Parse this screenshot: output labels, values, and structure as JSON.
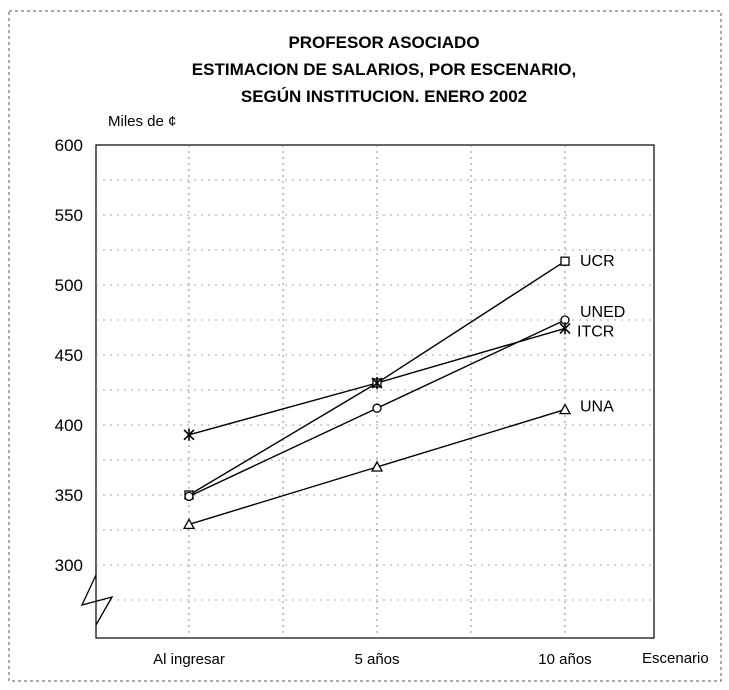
{
  "chart_data": {
    "type": "line",
    "title": [
      "PROFESOR ASOCIADO",
      "ESTIMACION DE SALARIOS, POR ESCENARIO,",
      "SEGÚN INSTITUCION. ENERO 2002"
    ],
    "ylabel": "Miles de ¢",
    "xlabel": "Escenario",
    "categories": [
      "Al ingresar",
      "5 años",
      "10 años"
    ],
    "ylim": [
      250,
      600
    ],
    "yticks": [
      300,
      350,
      400,
      450,
      500,
      550,
      600
    ],
    "grid": "dotted",
    "series": [
      {
        "name": "UCR",
        "marker": "square",
        "values": [
          350,
          430,
          517
        ]
      },
      {
        "name": "UNED",
        "marker": "circle",
        "values": [
          349,
          412,
          475
        ]
      },
      {
        "name": "ITCR",
        "marker": "star",
        "values": [
          393,
          430,
          469
        ]
      },
      {
        "name": "UNA",
        "marker": "triangle",
        "values": [
          329,
          370,
          411
        ]
      }
    ]
  }
}
